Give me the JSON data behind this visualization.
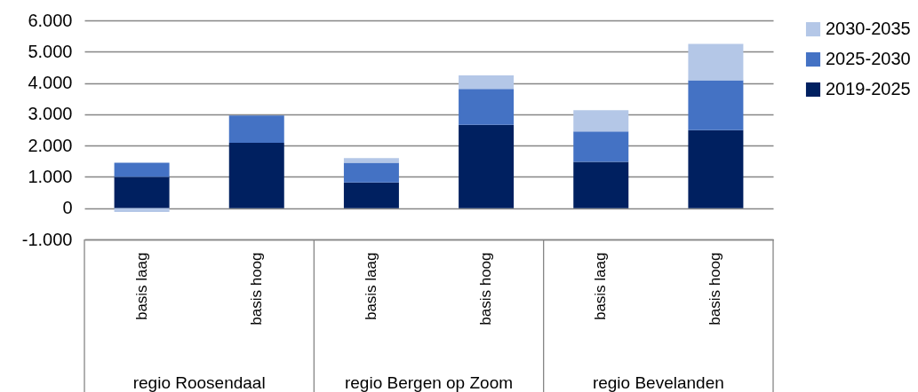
{
  "chart_data": {
    "type": "bar",
    "stacked": true,
    "categories": [
      "basis laag",
      "basis hoog",
      "basis laag",
      "basis hoog",
      "basis laag",
      "basis hoog"
    ],
    "annotations": [
      "regio Roosendaal",
      "regio Bergen op Zoom",
      "regio Bevelanden"
    ],
    "series": [
      {
        "name": "2019-2025",
        "color": "#002060",
        "values": [
          1000,
          2090,
          820,
          2660,
          1480,
          2490
        ]
      },
      {
        "name": "2025-2030",
        "color": "#4472c4",
        "values": [
          450,
          870,
          630,
          1150,
          970,
          1600
        ]
      },
      {
        "name": "2030-2035",
        "color": "#b4c7e7",
        "values": [
          -120,
          null,
          150,
          430,
          680,
          1160
        ]
      }
    ],
    "ylim": [
      -1000,
      6000
    ],
    "yticks": [
      {
        "value": -1000,
        "label": "-1.000"
      },
      {
        "value": 0,
        "label": "0"
      },
      {
        "value": 1000,
        "label": "1.000"
      },
      {
        "value": 2000,
        "label": "2.000"
      },
      {
        "value": 3000,
        "label": "3.000"
      },
      {
        "value": 4000,
        "label": "4.000"
      },
      {
        "value": 5000,
        "label": "5.000"
      },
      {
        "value": 6000,
        "label": "6.000"
      }
    ],
    "grid": "y",
    "legend": "top right"
  }
}
